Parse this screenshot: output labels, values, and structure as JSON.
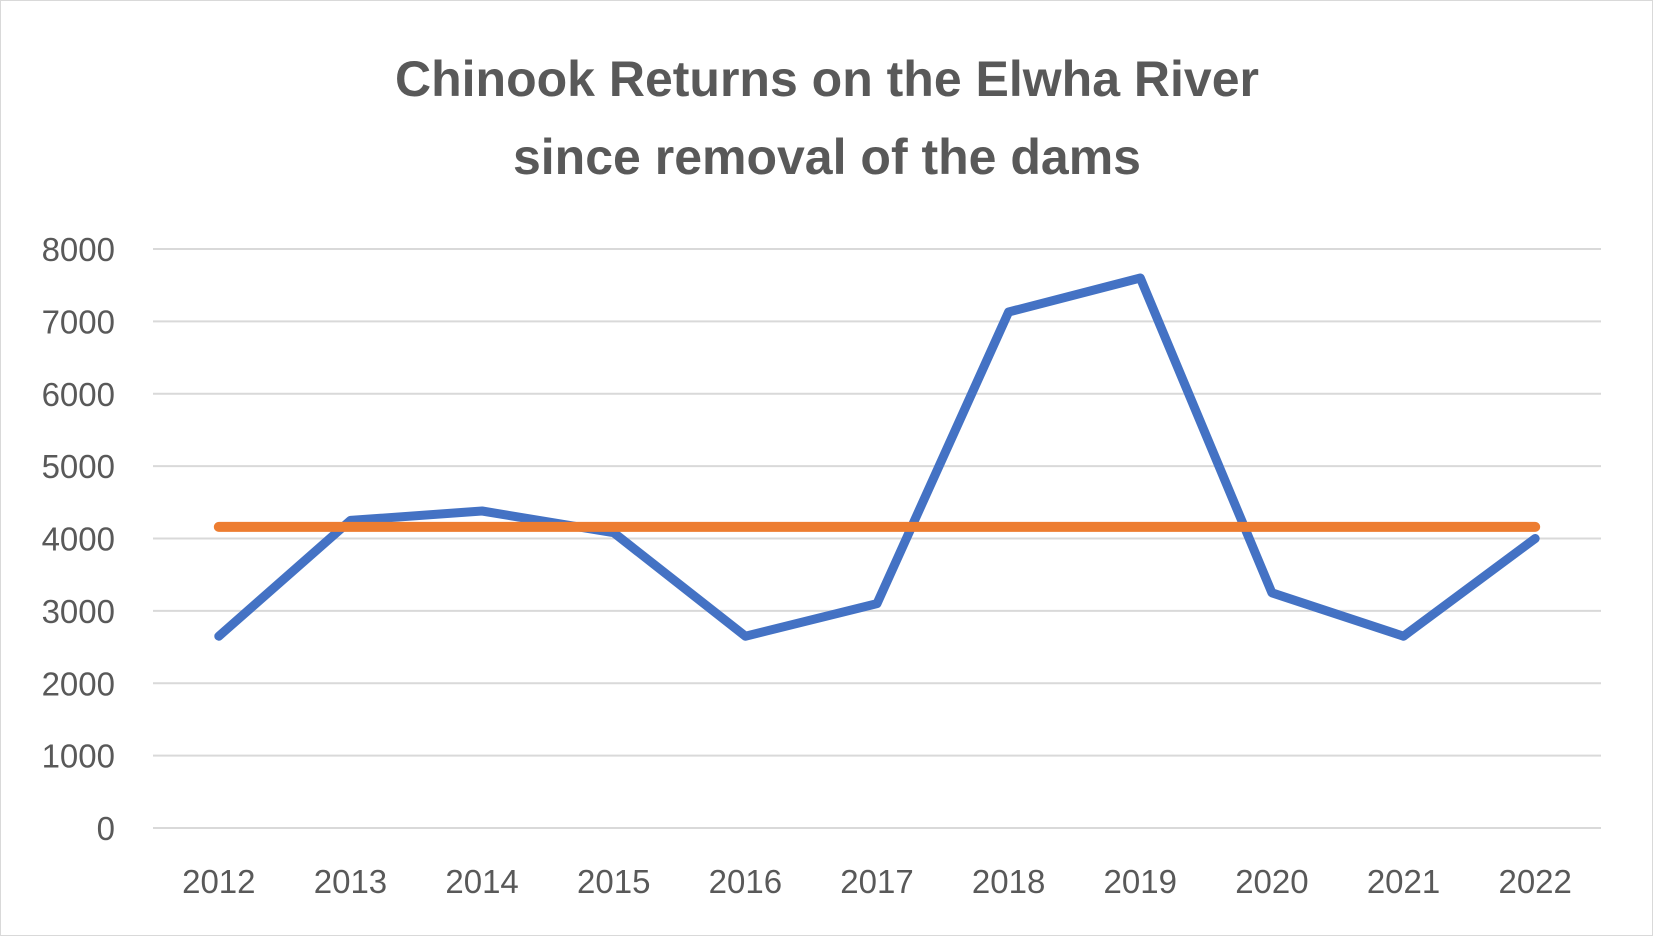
{
  "chart_data": {
    "type": "line",
    "title": [
      "Chinook Returns on the Elwha River",
      "since removal of the dams"
    ],
    "categories": [
      "2012",
      "2013",
      "2014",
      "2015",
      "2016",
      "2017",
      "2018",
      "2019",
      "2020",
      "2021",
      "2022"
    ],
    "series": [
      {
        "values": [
          2650,
          4250,
          4380,
          4080,
          2650,
          3100,
          7130,
          7600,
          3250,
          2650,
          4000
        ],
        "color": "#4472c4"
      },
      {
        "values": [
          4160,
          4160,
          4160,
          4160,
          4160,
          4160,
          4160,
          4160,
          4160,
          4160,
          4160
        ],
        "color": "#ed7d31"
      }
    ],
    "yticks": [
      "0",
      "1000",
      "2000",
      "3000",
      "4000",
      "5000",
      "6000",
      "7000",
      "8000"
    ],
    "ylim": [
      0,
      8000
    ],
    "grid": true,
    "legend": "none",
    "xlabel": "",
    "ylabel": ""
  }
}
